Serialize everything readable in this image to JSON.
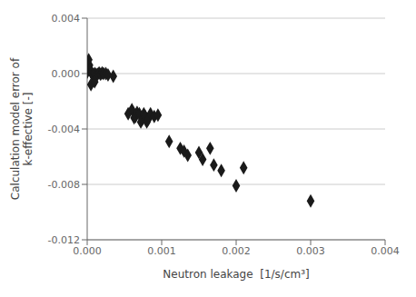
{
  "chart_data": {
    "type": "scatter",
    "x": [
      0.0,
      2e-05,
      3e-05,
      4e-05,
      5e-05,
      6e-05,
      7e-05,
      8e-05,
      9e-05,
      0.0001,
      0.00012,
      0.00014,
      0.00016,
      0.00018,
      0.0002,
      0.00022,
      0.00025,
      0.00028,
      5e-05,
      0.0001,
      0.00035,
      0.00055,
      0.0006,
      0.00063,
      0.00065,
      0.00067,
      0.0007,
      0.00072,
      0.00074,
      0.00076,
      0.00078,
      0.0008,
      0.00082,
      0.00085,
      0.0009,
      0.00095,
      0.0011,
      0.00125,
      0.0013,
      0.00135,
      0.0015,
      0.00155,
      0.00165,
      0.0017,
      0.0018,
      0.002,
      0.0021,
      0.003
    ],
    "values": [
      0.0001,
      0.001,
      0.0006,
      0.0003,
      0.0001,
      5e-05,
      -5e-05,
      -0.0001,
      -0.0002,
      0.0,
      -5e-05,
      -5e-05,
      5e-05,
      -5e-05,
      5e-05,
      0.0,
      0.0,
      -0.0001,
      -0.0008,
      -0.0006,
      -0.0002,
      -0.0029,
      -0.0026,
      -0.0032,
      -0.0031,
      -0.0028,
      -0.0029,
      -0.0035,
      -0.0033,
      -0.0029,
      -0.0031,
      -0.0035,
      -0.0033,
      -0.0029,
      -0.0031,
      -0.003,
      -0.0049,
      -0.0054,
      -0.0056,
      -0.0059,
      -0.0057,
      -0.0062,
      -0.0054,
      -0.0066,
      -0.007,
      -0.0081,
      -0.0068,
      -0.0092
    ],
    "xlabel": "Neutron leakage  [1/s/cm³]",
    "ylabel": "Calculation model error of\nk-effective [-]",
    "xlim": [
      0.0,
      0.004
    ],
    "ylim": [
      -0.012,
      0.004
    ],
    "xticks": [
      {
        "value": 0.0,
        "label": "0.000"
      },
      0.001,
      0.002,
      0.003,
      0.004
    ],
    "yticks": [
      -0.012,
      -0.008,
      -0.004,
      {
        "value": 0.0,
        "label": "0.000"
      },
      0.004
    ],
    "marker": "diamond",
    "color": "#1a1a1a",
    "grid": "y"
  }
}
